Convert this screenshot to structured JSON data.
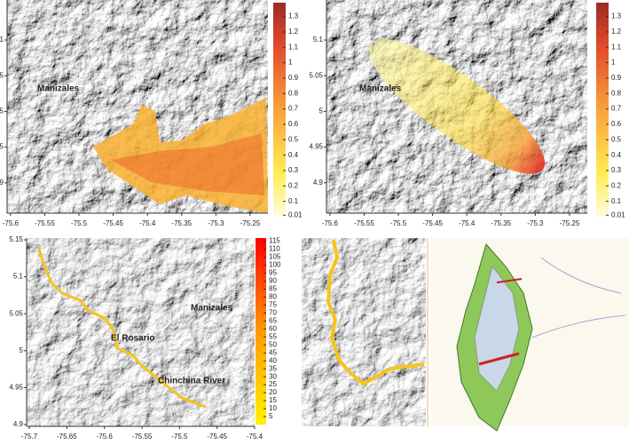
{
  "chart_data": [
    {
      "type": "map",
      "xlim": [
        -75.605,
        -75.224
      ],
      "ylim": [
        4.8575,
        5.156
      ],
      "xticks": [
        -75.6,
        -75.55,
        -75.5,
        -75.45,
        -75.4,
        -75.35,
        -75.3,
        -75.25
      ],
      "yticks": [
        5.1,
        5.05,
        5,
        4.95,
        4.9
      ],
      "colorbar": {
        "lim": [
          0,
          1.39
        ],
        "ticks": [
          1.3,
          1.2,
          1.1,
          1,
          0.9,
          0.8,
          0.7,
          0.6,
          0.5,
          0.4,
          0.3,
          0.2,
          0.1,
          0.01
        ]
      },
      "labels": [
        "Manizales"
      ]
    },
    {
      "type": "map",
      "xlim": [
        -75.605,
        -75.224
      ],
      "ylim": [
        4.8575,
        5.156
      ],
      "xticks": [
        -75.6,
        -75.55,
        -75.5,
        -75.45,
        -75.4,
        -75.35,
        -75.3,
        -75.25
      ],
      "yticks": [
        5.1,
        5.05,
        5,
        4.95,
        4.9
      ],
      "colorbar": {
        "lim": [
          0,
          1.39
        ],
        "ticks": [
          1.3,
          1.2,
          1.1,
          1,
          0.9,
          0.8,
          0.7,
          0.6,
          0.5,
          0.4,
          0.3,
          0.2,
          0.1,
          0.01
        ]
      },
      "labels": [
        "Manizales"
      ]
    },
    {
      "type": "map",
      "xlim": [
        -75.7036,
        -75.4
      ],
      "ylim": [
        4.8976,
        5.1524
      ],
      "xticks": [
        -75.7,
        -75.65,
        -75.6,
        -75.55,
        -75.5,
        -75.45,
        -75.4
      ],
      "yticks": [
        5.15,
        5.1,
        5.05,
        5,
        4.95,
        4.9
      ],
      "colorbar": {
        "lim": [
          0,
          117
        ],
        "ticks": [
          115,
          110,
          105,
          100,
          95,
          90,
          85,
          80,
          75,
          70,
          65,
          60,
          55,
          50,
          45,
          40,
          35,
          30,
          25,
          20,
          15,
          10,
          5
        ]
      },
      "labels": [
        "El Rosario",
        "Chinchina River",
        "Manizales"
      ]
    }
  ]
}
